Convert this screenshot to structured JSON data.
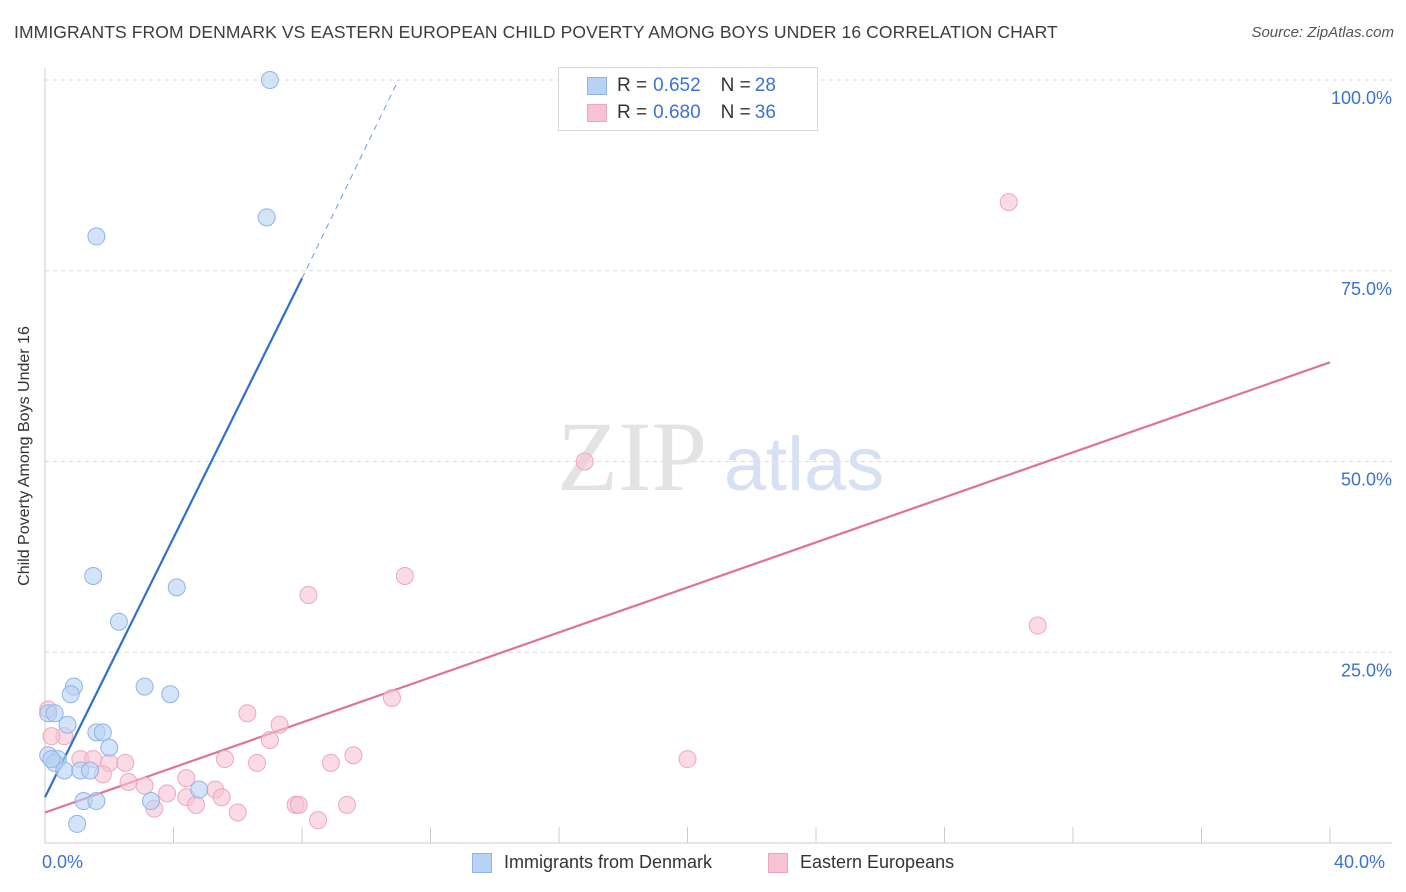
{
  "title": "IMMIGRANTS FROM DENMARK VS EASTERN EUROPEAN CHILD POVERTY AMONG BOYS UNDER 16 CORRELATION CHART",
  "source": "Source: ZipAtlas.com",
  "watermark": {
    "zip": "ZIP",
    "atlas": "atlas"
  },
  "colors": {
    "blue_fill": "#b8d2f4",
    "blue_stroke": "#8fb4e6",
    "blue_line": "#2f6fd1",
    "pink_fill": "#f7c3d3",
    "pink_stroke": "#eea6be",
    "pink_line": "#e0719b",
    "tick_text": "#3a72d6",
    "grid": "#d9d9d9"
  },
  "legend": {
    "series1": {
      "r_label": "R = ",
      "r_value": "0.652",
      "n_label": "N = ",
      "n_value": "28"
    },
    "series2": {
      "r_label": "R = ",
      "r_value": "0.680",
      "n_label": "N = ",
      "n_value": "36"
    }
  },
  "chart_data": {
    "type": "scatter",
    "title": "IMMIGRANTS FROM DENMARK VS EASTERN EUROPEAN CHILD POVERTY AMONG BOYS UNDER 16 CORRELATION CHART",
    "xlabel": "",
    "ylabel": "Child Poverty Among Boys Under 16",
    "xlim": [
      0,
      40
    ],
    "ylim": [
      0,
      100
    ],
    "x_tick_labels": [
      "0.0%",
      "40.0%"
    ],
    "y_ticks": [
      25,
      50,
      75,
      100
    ],
    "y_tick_labels": [
      "25.0%",
      "50.0%",
      "75.0%",
      "100.0%"
    ],
    "grid": true,
    "legend_position": "top-center",
    "series": [
      {
        "name": "Immigrants from Denmark",
        "color": "#b8d2f4",
        "points": [
          {
            "x": 7.0,
            "y": 100
          },
          {
            "x": 6.9,
            "y": 82
          },
          {
            "x": 1.6,
            "y": 79.5
          },
          {
            "x": 1.5,
            "y": 35
          },
          {
            "x": 4.1,
            "y": 33.5
          },
          {
            "x": 2.3,
            "y": 29
          },
          {
            "x": 0.9,
            "y": 20.5
          },
          {
            "x": 0.8,
            "y": 19.5
          },
          {
            "x": 3.1,
            "y": 20.5
          },
          {
            "x": 3.9,
            "y": 19.5
          },
          {
            "x": 0.1,
            "y": 17
          },
          {
            "x": 0.7,
            "y": 15.5
          },
          {
            "x": 1.6,
            "y": 14.5
          },
          {
            "x": 1.8,
            "y": 14.5
          },
          {
            "x": 2.0,
            "y": 12.5
          },
          {
            "x": 0.1,
            "y": 11.5
          },
          {
            "x": 0.4,
            "y": 11
          },
          {
            "x": 0.3,
            "y": 10.5
          },
          {
            "x": 0.6,
            "y": 9.5
          },
          {
            "x": 1.1,
            "y": 9.5
          },
          {
            "x": 1.4,
            "y": 9.5
          },
          {
            "x": 0.3,
            "y": 17
          },
          {
            "x": 1.2,
            "y": 5.5
          },
          {
            "x": 1.6,
            "y": 5.5
          },
          {
            "x": 3.3,
            "y": 5.5
          },
          {
            "x": 4.8,
            "y": 7
          },
          {
            "x": 1.0,
            "y": 2.5
          },
          {
            "x": 0.2,
            "y": 11
          }
        ],
        "trend": {
          "x0": 0,
          "y0": 6,
          "x1": 8,
          "y1": 74,
          "dashed_to_x": 11,
          "dashed_to_y": 100
        }
      },
      {
        "name": "Eastern Europeans",
        "color": "#f7c3d3",
        "points": [
          {
            "x": 30.0,
            "y": 84
          },
          {
            "x": 16.8,
            "y": 50
          },
          {
            "x": 11.2,
            "y": 35
          },
          {
            "x": 8.2,
            "y": 32.5
          },
          {
            "x": 30.9,
            "y": 28.5
          },
          {
            "x": 10.8,
            "y": 19
          },
          {
            "x": 6.3,
            "y": 17
          },
          {
            "x": 7.3,
            "y": 15.5
          },
          {
            "x": 7.0,
            "y": 13.5
          },
          {
            "x": 0.1,
            "y": 17.5
          },
          {
            "x": 0.6,
            "y": 14
          },
          {
            "x": 1.1,
            "y": 11
          },
          {
            "x": 1.5,
            "y": 11
          },
          {
            "x": 2.0,
            "y": 10.5
          },
          {
            "x": 2.5,
            "y": 10.5
          },
          {
            "x": 5.6,
            "y": 11
          },
          {
            "x": 6.6,
            "y": 10.5
          },
          {
            "x": 8.9,
            "y": 10.5
          },
          {
            "x": 9.6,
            "y": 11.5
          },
          {
            "x": 20.0,
            "y": 11
          },
          {
            "x": 1.8,
            "y": 9
          },
          {
            "x": 2.6,
            "y": 8
          },
          {
            "x": 3.1,
            "y": 7.5
          },
          {
            "x": 3.8,
            "y": 6.5
          },
          {
            "x": 4.4,
            "y": 6
          },
          {
            "x": 4.4,
            "y": 8.5
          },
          {
            "x": 4.7,
            "y": 5
          },
          {
            "x": 5.3,
            "y": 7
          },
          {
            "x": 5.5,
            "y": 6
          },
          {
            "x": 6.0,
            "y": 4
          },
          {
            "x": 7.8,
            "y": 5
          },
          {
            "x": 7.9,
            "y": 5
          },
          {
            "x": 9.4,
            "y": 5
          },
          {
            "x": 8.5,
            "y": 3
          },
          {
            "x": 3.4,
            "y": 4.5
          },
          {
            "x": 0.2,
            "y": 14
          }
        ],
        "trend": {
          "x0": 0,
          "y0": 4,
          "x1": 40,
          "y1": 63
        }
      }
    ],
    "bottom_legend": [
      "Immigrants from Denmark",
      "Eastern Europeans"
    ]
  }
}
